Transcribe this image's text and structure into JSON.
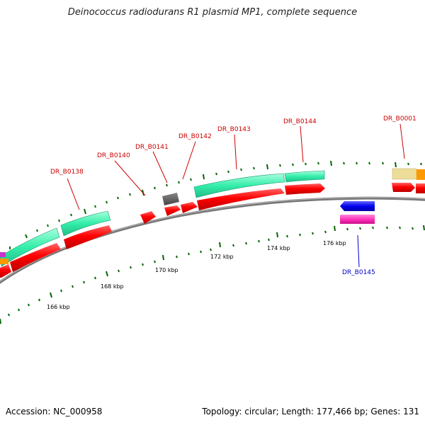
{
  "title": "Deinococcus radiodurans R1 plasmid MP1, complete sequence",
  "footer": {
    "accession": "Accession: NC_000958",
    "summary": "Topology: circular; Length: 177,466 bp; Genes: 131"
  },
  "colors": {
    "gene_label_red": "#cc0000",
    "gene_label_blue": "#0000cc",
    "cds": "#ff0000",
    "aqua": "#33ffaa",
    "backbone": "#888888",
    "ticks": "#006600"
  },
  "gene_labels": [
    {
      "name": "DR_B0138",
      "color": "red"
    },
    {
      "name": "DR_B0140",
      "color": "red"
    },
    {
      "name": "DR_B0141",
      "color": "red"
    },
    {
      "name": "DR_B0142",
      "color": "red"
    },
    {
      "name": "DR_B0143",
      "color": "red"
    },
    {
      "name": "DR_B0144",
      "color": "red"
    },
    {
      "name": "DR_B0001",
      "color": "red"
    },
    {
      "name": "DR_B0145",
      "color": "blue"
    }
  ],
  "tick_labels": [
    "166 kbp",
    "168 kbp",
    "170 kbp",
    "172 kbp",
    "174 kbp",
    "176 kbp"
  ]
}
